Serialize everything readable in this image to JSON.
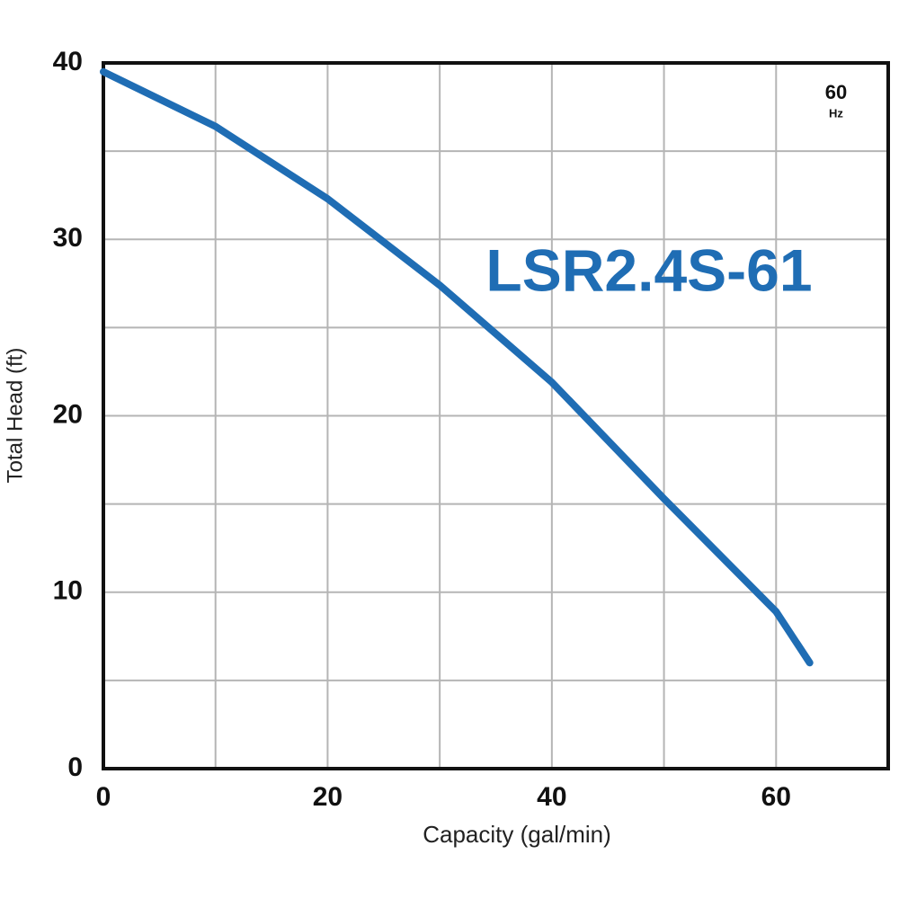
{
  "chart_data": {
    "type": "line",
    "x_label": "Capacity  (gal/min)",
    "y_label": "Total  Head  (ft)",
    "annotations": [
      "60",
      "Hz"
    ],
    "series": [
      {
        "name": "LSR2.4S-61",
        "color": "#1f6db4",
        "x": [
          0,
          10,
          20,
          30,
          40,
          50,
          60,
          63
        ],
        "values": [
          39.5,
          36.4,
          32.3,
          27.4,
          21.9,
          15.3,
          8.9,
          6.0
        ]
      }
    ],
    "xlim": [
      0,
      70
    ],
    "ylim": [
      0,
      40
    ],
    "xticks": [
      0,
      20,
      40,
      60
    ],
    "yticks": [
      0,
      10,
      20,
      30,
      40
    ],
    "xgrid": [
      10,
      20,
      30,
      40,
      50,
      60
    ],
    "ygrid": [
      5,
      10,
      15,
      20,
      25,
      30,
      35
    ],
    "grid": true
  }
}
